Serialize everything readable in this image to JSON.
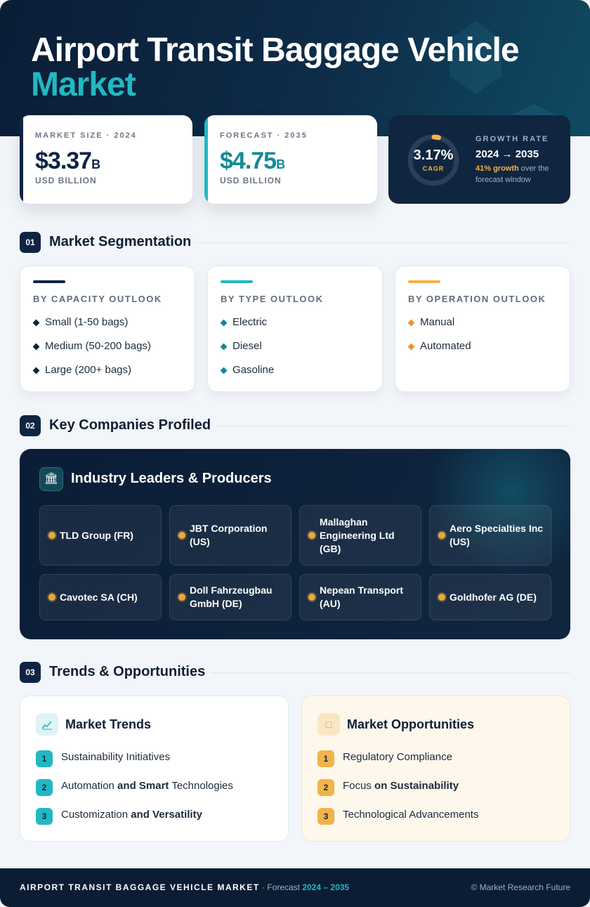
{
  "hero": {
    "title_line1": "Airport Transit Baggage Vehicle",
    "title_line2": "Market"
  },
  "kpis": {
    "market_size": {
      "label": "MARKET SIZE · 2024",
      "value": "$3.37",
      "suffix": "B",
      "unit": "USD BILLION"
    },
    "forecast": {
      "label": "FORECAST · 2035",
      "value": "$4.75",
      "suffix": "B",
      "unit": "USD BILLION"
    },
    "growth": {
      "label": "GROWTH RATE",
      "cagr_value": "3.17%",
      "cagr_label": "CAGR",
      "years": "2024 → 2035",
      "note_highlight": "41% growth",
      "note_rest": " over the forecast window",
      "ring_fraction": 0.0317
    }
  },
  "sections": {
    "segmentation": {
      "num": "01",
      "title": "Market Segmentation"
    },
    "companies": {
      "num": "02",
      "title": "Key Companies Profiled"
    },
    "trends": {
      "num": "03",
      "title": "Trends & Opportunities"
    }
  },
  "segments": [
    {
      "heading": "BY CAPACITY OUTLOOK",
      "items": [
        "Small (1-50 bags)",
        "Medium (50-200 bags)",
        "Large (200+ bags)"
      ]
    },
    {
      "heading": "BY TYPE OUTLOOK",
      "items": [
        "Electric",
        "Diesel",
        "Gasoline"
      ]
    },
    {
      "heading": "BY OPERATION OUTLOOK",
      "items": [
        "Manual",
        "Automated"
      ]
    }
  ],
  "leaders": {
    "title": "Industry Leaders & Producers",
    "icon": "bank-icon",
    "companies": [
      "TLD Group (FR)",
      "JBT Corporation (US)",
      "Mallaghan Engineering Ltd (GB)",
      "Aero Specialties Inc (US)",
      "Cavotec SA (CH)",
      "Doll Fahrzeugbau GmbH (DE)",
      "Nepean Transport (AU)",
      "Goldhofer AG (DE)"
    ]
  },
  "trends": {
    "title": "Market Trends",
    "icon": "chart-line-icon",
    "items": [
      {
        "n": "1",
        "pre": "Sustainability Initiatives",
        "bold": "",
        "post": ""
      },
      {
        "n": "2",
        "pre": "Automation",
        "bold": " and Smart",
        "post": " Technologies"
      },
      {
        "n": "3",
        "pre": "Customization",
        "bold": " and Versatility",
        "post": ""
      }
    ]
  },
  "opportunities": {
    "title": "Market Opportunities",
    "icon": "target-icon",
    "items": [
      {
        "n": "1",
        "pre": "Regulatory Compliance",
        "bold": "",
        "post": ""
      },
      {
        "n": "2",
        "pre": "Focus",
        "bold": " on Sustainability",
        "post": ""
      },
      {
        "n": "3",
        "pre": "Technological Advancements",
        "bold": "",
        "post": ""
      }
    ]
  },
  "footer": {
    "market": "AIRPORT TRANSIT BAGGAGE VEHICLE MARKET",
    "sep": " · Forecast ",
    "years": "2024 – 2035",
    "copyright": "© Market Research Future"
  },
  "colors": {
    "navy": "#0f2442",
    "teal": "#22b8c2",
    "amber": "#f2b34a"
  }
}
